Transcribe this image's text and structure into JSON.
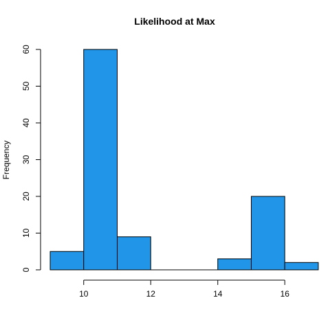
{
  "chart_data": {
    "type": "bar",
    "histogram": true,
    "title": "Likelihood at Max",
    "xlabel": "",
    "ylabel": "Frequency",
    "bins": [
      {
        "start": 9,
        "end": 10,
        "count": 5
      },
      {
        "start": 10,
        "end": 11,
        "count": 60
      },
      {
        "start": 11,
        "end": 12,
        "count": 9
      },
      {
        "start": 12,
        "end": 13,
        "count": 0
      },
      {
        "start": 13,
        "end": 14,
        "count": 0
      },
      {
        "start": 14,
        "end": 15,
        "count": 3
      },
      {
        "start": 15,
        "end": 16,
        "count": 20
      },
      {
        "start": 16,
        "end": 17,
        "count": 2
      }
    ],
    "xlim": [
      9,
      17
    ],
    "ylim": [
      0,
      60
    ],
    "x_ticks": [
      10,
      12,
      14,
      16
    ],
    "y_ticks": [
      0,
      10,
      20,
      30,
      40,
      50,
      60
    ],
    "bar_color": "#2196E8",
    "bar_border_color": "#000000",
    "grid": false,
    "legend": "none"
  }
}
